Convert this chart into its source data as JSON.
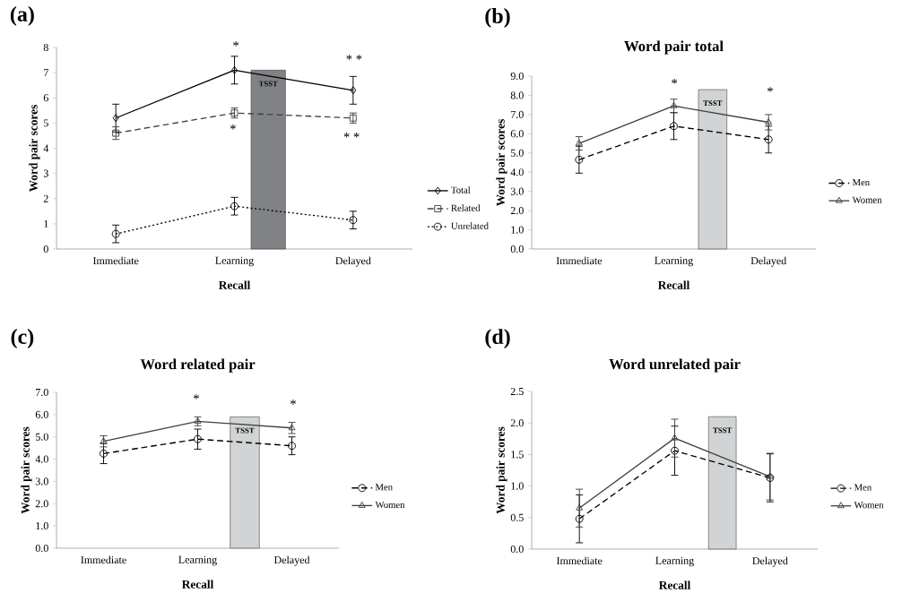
{
  "chart_data": [
    {
      "type": "line",
      "xlabel": "Recall",
      "ylabel": "Word pair scores",
      "categories": [
        "Immediate",
        "Learning",
        "Delayed"
      ],
      "ylim": [
        0,
        8
      ],
      "yticks": [
        0,
        1,
        2,
        3,
        4,
        5,
        6,
        7,
        8
      ],
      "legend": "right",
      "annotations": [
        "(a)",
        "*",
        "* *",
        "*",
        "* *"
      ],
      "series": [
        {
          "type": "bar",
          "name": "TSST",
          "color": "#808285",
          "values": [
            null,
            7.1,
            null
          ]
        },
        {
          "name": "Total",
          "color": "#000000",
          "values": [
            5.2,
            7.1,
            6.3
          ],
          "errors": [
            0.55,
            0.55,
            0.55
          ],
          "marker": "diamond",
          "line_style": "solid"
        },
        {
          "name": "Related",
          "color": "#404040",
          "values": [
            4.6,
            5.4,
            5.2
          ],
          "errors": [
            0.25,
            0.2,
            0.2
          ],
          "marker": "square",
          "line_style": "dashed"
        },
        {
          "name": "Unrelated",
          "color": "#000000",
          "values": [
            0.6,
            1.7,
            1.15
          ],
          "errors": [
            0.35,
            0.35,
            0.35
          ],
          "marker": "circle",
          "line_style": "dotted"
        }
      ]
    },
    {
      "type": "line",
      "title": "Word pair total",
      "xlabel": "Recall",
      "ylabel": "Word pair scores",
      "categories": [
        "Immediate",
        "Learning",
        "Delayed"
      ],
      "ylim": [
        0,
        9
      ],
      "yticks": [
        {
          "value": 0,
          "label": "0.0"
        },
        {
          "value": 1,
          "label": "1.0"
        },
        {
          "value": 2,
          "label": "2.0"
        },
        {
          "value": 3,
          "label": "3.0"
        },
        {
          "value": 4,
          "label": "4.0"
        },
        {
          "value": 5,
          "label": "5.0"
        },
        {
          "value": 6,
          "label": "6.0"
        },
        {
          "value": 7,
          "label": "7.0"
        },
        {
          "value": 8,
          "label": "8.0"
        },
        {
          "value": 9,
          "label": "9.0"
        }
      ],
      "legend": "right",
      "annotations": [
        "(b)",
        "*",
        "*"
      ],
      "series": [
        {
          "type": "bar",
          "name": "TSST",
          "color": "#d1d3d4",
          "values": [
            null,
            8.3,
            null
          ]
        },
        {
          "name": "Men",
          "color": "#000000",
          "values": [
            4.65,
            6.4,
            5.7
          ],
          "errors": [
            0.7,
            0.7,
            0.7
          ],
          "marker": "circle",
          "line_style": "dashed"
        },
        {
          "name": "Women",
          "color": "#404040",
          "values": [
            5.5,
            7.45,
            6.6
          ],
          "errors": [
            0.35,
            0.35,
            0.4
          ],
          "marker": "triangle",
          "line_style": "solid"
        }
      ]
    },
    {
      "type": "line",
      "title": "Word related pair",
      "xlabel": "Recall",
      "ylabel": "Word pair scores",
      "categories": [
        "Immediate",
        "Learning",
        "Delayed"
      ],
      "ylim": [
        0,
        7
      ],
      "yticks": [
        {
          "value": 0,
          "label": "0.0"
        },
        {
          "value": 1,
          "label": "1.0"
        },
        {
          "value": 2,
          "label": "2.0"
        },
        {
          "value": 3,
          "label": "3.0"
        },
        {
          "value": 4,
          "label": "4.0"
        },
        {
          "value": 5,
          "label": "5.0"
        },
        {
          "value": 6,
          "label": "6.0"
        },
        {
          "value": 7,
          "label": "7.0"
        }
      ],
      "legend": "right",
      "annotations": [
        "(c)",
        "*",
        "*"
      ],
      "series": [
        {
          "type": "bar",
          "name": "TSST",
          "color": "#d1d3d4",
          "values": [
            null,
            5.9,
            null
          ]
        },
        {
          "name": "Men",
          "color": "#000000",
          "values": [
            4.25,
            4.9,
            4.6
          ],
          "errors": [
            0.45,
            0.45,
            0.4
          ],
          "marker": "circle",
          "line_style": "dashed"
        },
        {
          "name": "Women",
          "color": "#404040",
          "values": [
            4.8,
            5.7,
            5.4
          ],
          "errors": [
            0.25,
            0.2,
            0.25
          ],
          "marker": "triangle",
          "line_style": "solid"
        }
      ]
    },
    {
      "type": "line",
      "title": "Word unrelated pair",
      "xlabel": "Recall",
      "ylabel": "Word pair scores",
      "categories": [
        "Immediate",
        "Learning",
        "Delayed"
      ],
      "ylim": [
        0,
        2.5
      ],
      "yticks": [
        {
          "value": 0,
          "label": "0.0"
        },
        {
          "value": 0.5,
          "label": "0.5"
        },
        {
          "value": 1,
          "label": "1.0"
        },
        {
          "value": 1.5,
          "label": "1.5"
        },
        {
          "value": 2,
          "label": "2.0"
        },
        {
          "value": 2.5,
          "label": "2.5"
        }
      ],
      "legend": "right",
      "annotations": [
        "(d)"
      ],
      "series": [
        {
          "type": "bar",
          "name": "TSST",
          "color": "#d1d3d4",
          "values": [
            null,
            2.1,
            null
          ]
        },
        {
          "name": "Men",
          "color": "#000000",
          "values": [
            0.48,
            1.56,
            1.13
          ],
          "errors": [
            0.38,
            0.39,
            0.38
          ],
          "marker": "circle",
          "line_style": "dashed"
        },
        {
          "name": "Women",
          "color": "#404040",
          "values": [
            0.65,
            1.76,
            1.15
          ],
          "errors": [
            0.3,
            0.3,
            0.37
          ],
          "marker": "triangle",
          "line_style": "solid"
        }
      ]
    }
  ]
}
